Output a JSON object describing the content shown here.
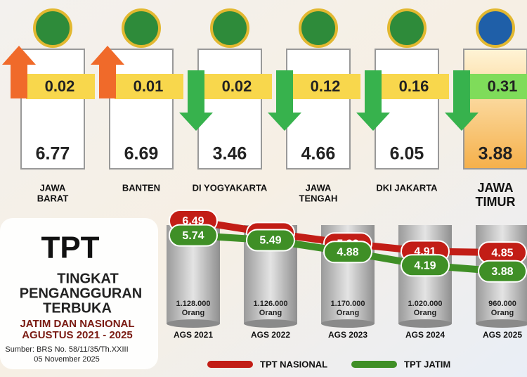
{
  "provinces": [
    {
      "name": [
        "JAWA",
        "BARAT"
      ],
      "tpt": 6.77,
      "change": 0.02,
      "direction": "up"
    },
    {
      "name": [
        "BANTEN"
      ],
      "tpt": 6.69,
      "change": 0.01,
      "direction": "up"
    },
    {
      "name": [
        "DI YOGYAKARTA"
      ],
      "tpt": 3.46,
      "change": 0.02,
      "direction": "down"
    },
    {
      "name": [
        "JAWA",
        "TENGAH"
      ],
      "tpt": 4.66,
      "change": 0.12,
      "direction": "down"
    },
    {
      "name": [
        "DKI JAKARTA"
      ],
      "tpt": 6.05,
      "change": 0.16,
      "direction": "down"
    },
    {
      "name": [
        "JAWA",
        "TIMUR"
      ],
      "tpt": 3.88,
      "change": 0.31,
      "direction": "down",
      "highlight": true
    }
  ],
  "header": {
    "abbr": "TPT",
    "lines": [
      "TINGKAT",
      "PENGANGGURAN",
      "TERBUKA"
    ],
    "subtitle": [
      "JATIM DAN NASIONAL",
      "AGUSTUS 2021 - 2025"
    ],
    "source": [
      "Sumber: BRS No. 58/11/35/Th.XXIII",
      "05 November 2025"
    ]
  },
  "counts": {
    "labels": [
      "1.128.000",
      "1.126.000",
      "1.170.000",
      "1.020.000",
      "960.000"
    ],
    "unit": "Orang"
  },
  "chart_data": {
    "type": "line",
    "categories": [
      "AGS 2021",
      "AGS 2022",
      "AGS 2023",
      "AGS 2024",
      "AGS 2025"
    ],
    "series": [
      {
        "name": "TPT NASIONAL",
        "color": "#c21d16",
        "values": [
          6.49,
          5.86,
          5.32,
          4.91,
          4.85
        ]
      },
      {
        "name": "TPT JATIM",
        "color": "#3f8f26",
        "values": [
          5.74,
          5.49,
          4.88,
          4.19,
          3.88
        ]
      }
    ],
    "ylim": [
      3,
      7
    ]
  }
}
